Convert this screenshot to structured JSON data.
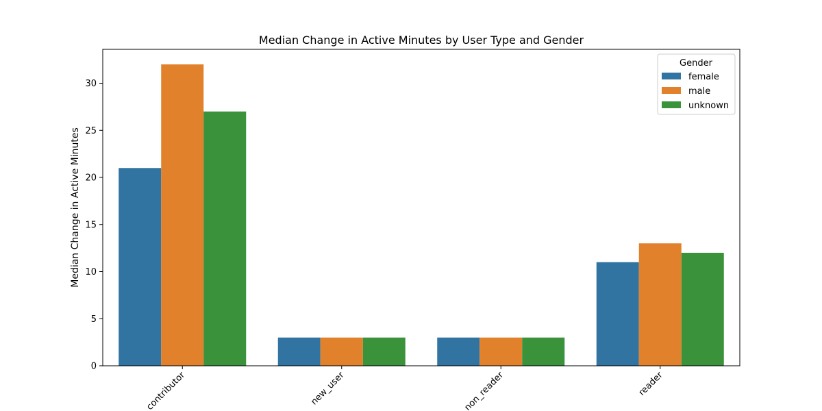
{
  "chart_data": {
    "type": "bar",
    "title": "Median Change in Active Minutes by User Type and Gender",
    "xlabel": "",
    "ylabel": "Median Change in Active Minutes",
    "categories": [
      "contributor",
      "new_user",
      "non_reader",
      "reader"
    ],
    "series": [
      {
        "name": "female",
        "values": [
          21,
          3,
          3,
          11
        ],
        "color": "#3274a1"
      },
      {
        "name": "male",
        "values": [
          32,
          3,
          3,
          13
        ],
        "color": "#e1812c"
      },
      {
        "name": "unknown",
        "values": [
          27,
          3,
          3,
          12
        ],
        "color": "#3a923a"
      }
    ],
    "ylim": [
      0,
      33.6
    ],
    "yticks": [
      0,
      5,
      10,
      15,
      20,
      25,
      30
    ],
    "legend": {
      "title": "Gender",
      "position": "top-right"
    },
    "grid": false
  }
}
